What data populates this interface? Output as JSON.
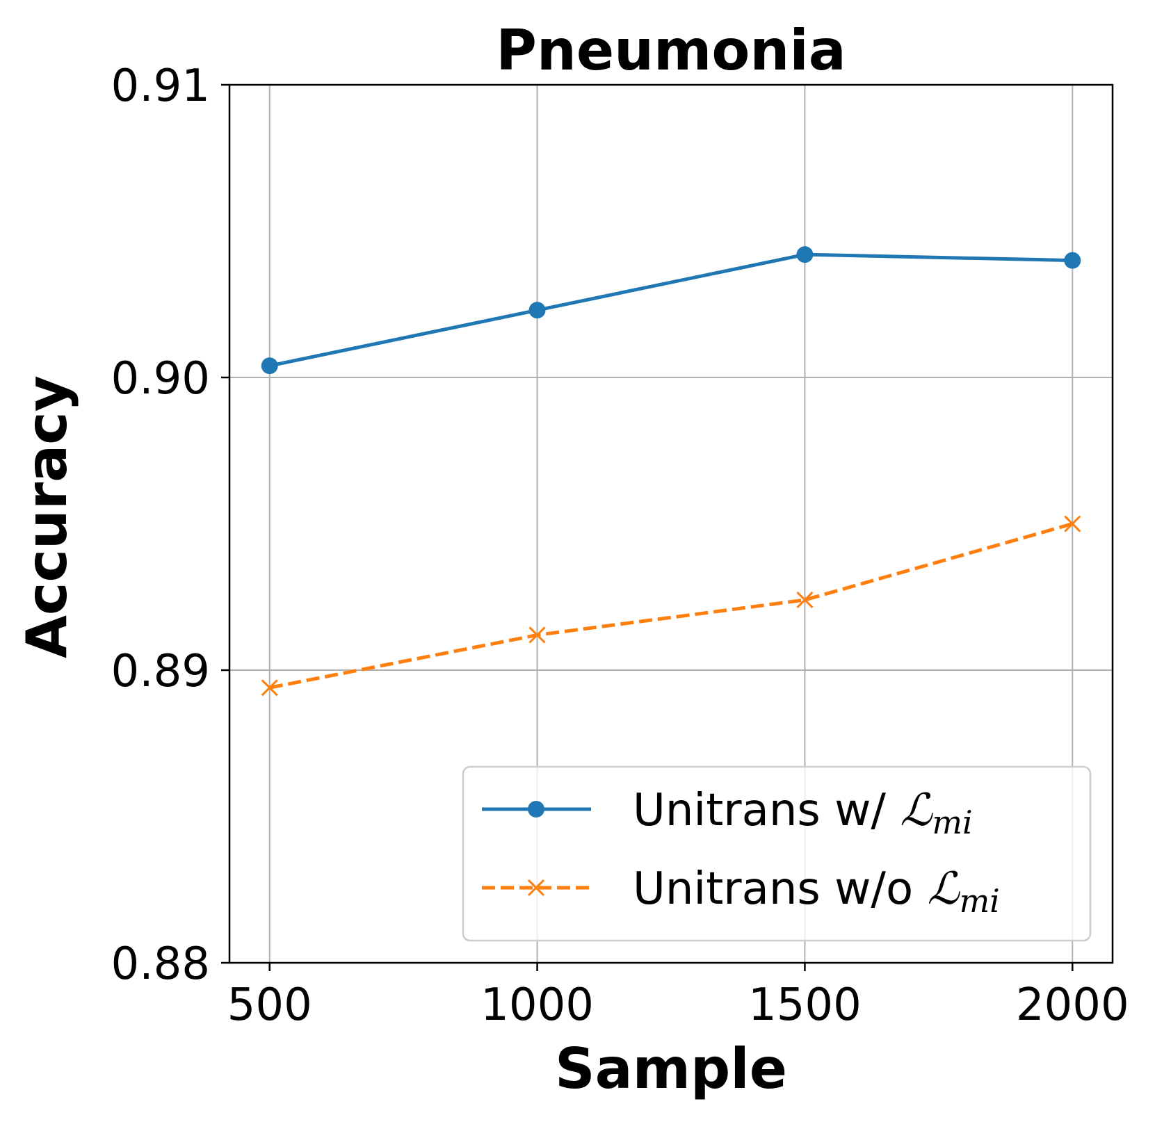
{
  "chart_data": {
    "type": "line",
    "title": "Pneumonia",
    "xlabel": "Sample",
    "ylabel": "Accuracy",
    "x": [
      500,
      1000,
      1500,
      2000
    ],
    "xticks": [
      "500",
      "1000",
      "1500",
      "2000"
    ],
    "xlim": [
      425,
      2075
    ],
    "ylim": [
      0.88,
      0.91
    ],
    "yticks": [
      0.88,
      0.89,
      0.9,
      0.91
    ],
    "ytick_labels": [
      "0.88",
      "0.89",
      "0.90",
      "0.91"
    ],
    "grid": true,
    "legend_position": "lower-right",
    "series": [
      {
        "name": "Unitrans w/ ℒmi",
        "label_prefix": "Unitrans w/ ",
        "label_math": "ℒ",
        "label_sub": "mi",
        "color": "#1f77b4",
        "marker": "circle",
        "linestyle": "solid",
        "values": [
          0.9004,
          0.9023,
          0.9042,
          0.904
        ]
      },
      {
        "name": "Unitrans w/o ℒmi",
        "label_prefix": "Unitrans w/o ",
        "label_math": "ℒ",
        "label_sub": "mi",
        "color": "#ff7f0e",
        "marker": "x",
        "linestyle": "dashed",
        "values": [
          0.8894,
          0.8912,
          0.8924,
          0.895
        ]
      }
    ]
  }
}
